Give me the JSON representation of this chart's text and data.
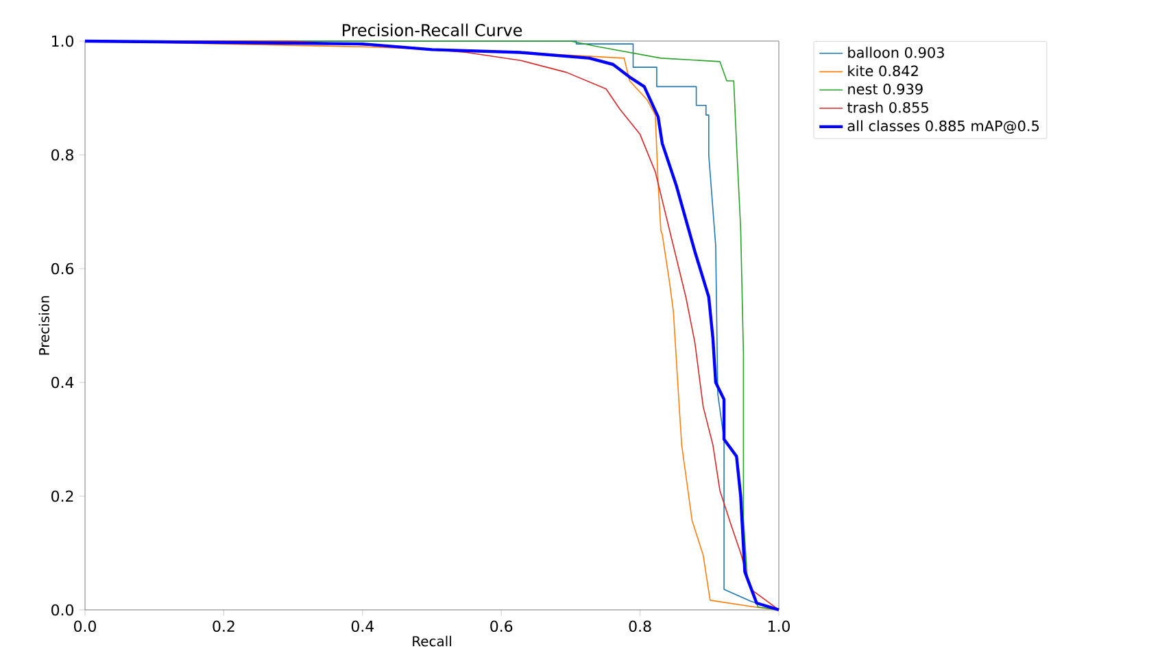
{
  "chart_data": {
    "type": "line",
    "title": "Precision-Recall Curve",
    "xlabel": "Recall",
    "ylabel": "Precision",
    "xlim": [
      0,
      1
    ],
    "ylim": [
      0,
      1
    ],
    "xticks": [
      {
        "value": 0,
        "label": "0.0"
      },
      {
        "value": 0.2,
        "label": "0.2"
      },
      {
        "value": 0.4,
        "label": "0.4"
      },
      {
        "value": 0.6,
        "label": "0.6"
      },
      {
        "value": 0.8,
        "label": "0.8"
      },
      {
        "value": 1,
        "label": "1.0"
      }
    ],
    "yticks": [
      {
        "value": 0,
        "label": "0.0"
      },
      {
        "value": 0.2,
        "label": "0.2"
      },
      {
        "value": 0.4,
        "label": "0.4"
      },
      {
        "value": 0.6,
        "label": "0.6"
      },
      {
        "value": 0.8,
        "label": "0.8"
      },
      {
        "value": 1,
        "label": "1.0"
      }
    ],
    "grid": false,
    "legend": "right",
    "marker": "none",
    "line_style": "solid",
    "series": [
      {
        "name": "balloon 0.903",
        "color": "#1f77b4",
        "x": [
          0,
          0.708,
          0.708,
          0.79,
          0.79,
          0.824,
          0.824,
          0.881,
          0.881,
          0.895,
          0.895,
          0.899,
          0.899,
          0.909,
          0.912,
          0.921,
          0.921,
          0.96,
          1.0
        ],
        "values": [
          1,
          1,
          0.995,
          0.995,
          0.954,
          0.954,
          0.92,
          0.92,
          0.887,
          0.887,
          0.87,
          0.87,
          0.8,
          0.64,
          0.38,
          0.3,
          0.036,
          0.015,
          0
        ]
      },
      {
        "name": "kite 0.842",
        "color": "#ff7f0e",
        "x": [
          0,
          0.2,
          0.4,
          0.628,
          0.777,
          0.785,
          0.81,
          0.822,
          0.826,
          0.83,
          0.832,
          0.842,
          0.848,
          0.856,
          0.86,
          0.875,
          0.891,
          0.901,
          0.965,
          1.0
        ],
        "values": [
          1,
          0.995,
          0.99,
          0.98,
          0.97,
          0.93,
          0.897,
          0.87,
          0.75,
          0.667,
          0.66,
          0.58,
          0.525,
          0.366,
          0.29,
          0.157,
          0.096,
          0.017,
          0.005,
          0
        ]
      },
      {
        "name": "nest 0.939",
        "color": "#2ca02c",
        "x": [
          0,
          0.7,
          0.74,
          0.83,
          0.915,
          0.925,
          0.935,
          0.939,
          0.945,
          0.949,
          0.949,
          0.955,
          0.97,
          1.0
        ],
        "values": [
          1,
          1,
          0.99,
          0.97,
          0.964,
          0.93,
          0.93,
          0.82,
          0.67,
          0.45,
          0.16,
          0.05,
          0.005,
          0
        ]
      },
      {
        "name": "trash 0.855",
        "color": "#d62728",
        "x": [
          0,
          0.3,
          0.45,
          0.55,
          0.628,
          0.694,
          0.751,
          0.771,
          0.8,
          0.822,
          0.846,
          0.866,
          0.879,
          0.891,
          0.905,
          0.915,
          0.931,
          0.945,
          0.96,
          1.0
        ],
        "values": [
          1,
          1,
          0.99,
          0.98,
          0.966,
          0.945,
          0.916,
          0.88,
          0.836,
          0.77,
          0.65,
          0.55,
          0.47,
          0.357,
          0.29,
          0.21,
          0.15,
          0.1,
          0.036,
          0
        ]
      },
      {
        "name": "all classes 0.885 mAP@0.5",
        "color": "#0000ff",
        "x": [
          0,
          0.4,
          0.5,
          0.628,
          0.727,
          0.761,
          0.787,
          0.806,
          0.826,
          0.832,
          0.852,
          0.879,
          0.899,
          0.905,
          0.909,
          0.921,
          0.921,
          0.939,
          0.945,
          0.951,
          0.968,
          1.0
        ],
        "values": [
          1,
          0.995,
          0.985,
          0.98,
          0.97,
          0.959,
          0.935,
          0.92,
          0.867,
          0.82,
          0.747,
          0.63,
          0.55,
          0.477,
          0.4,
          0.37,
          0.3,
          0.27,
          0.2,
          0.067,
          0.012,
          0
        ]
      }
    ]
  }
}
